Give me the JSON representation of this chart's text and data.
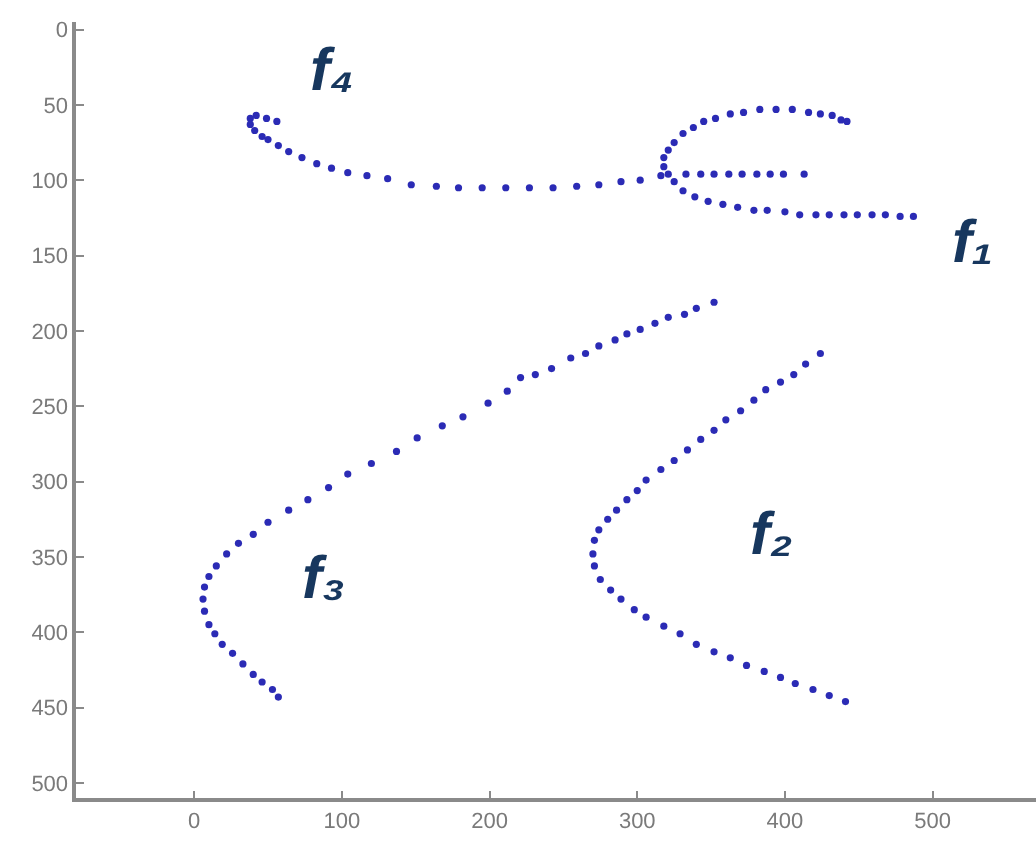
{
  "chart_data": {
    "type": "scatter",
    "xlim": [
      -80,
      570
    ],
    "ylim": [
      510,
      -5
    ],
    "xticks": [
      0,
      100,
      200,
      300,
      400,
      500
    ],
    "yticks": [
      0,
      50,
      100,
      150,
      200,
      250,
      300,
      350,
      400,
      450,
      500
    ],
    "marker": "circle",
    "series": [
      {
        "name": "f₄",
        "color": "#2b2bb5",
        "x": [
          56,
          49,
          42,
          38,
          38,
          41,
          46,
          50,
          57,
          64,
          73,
          83,
          93,
          104,
          117,
          131,
          147,
          164,
          179,
          195,
          211,
          227,
          243,
          259,
          274,
          289,
          302,
          316,
          333,
          343,
          352,
          362,
          371,
          381,
          390,
          399,
          413
        ],
        "values": [
          61,
          59,
          57,
          59,
          63,
          67,
          71,
          73,
          77,
          81,
          85,
          89,
          92,
          95,
          97,
          99,
          103,
          104,
          105,
          105,
          105,
          105,
          105,
          104,
          103,
          101,
          100,
          97,
          96,
          96,
          96,
          96,
          96,
          96,
          96,
          96,
          96
        ]
      },
      {
        "name": "f₁",
        "color": "#2b2bb5",
        "x": [
          487,
          478,
          468,
          459,
          449,
          440,
          430,
          421,
          410,
          400,
          388,
          379,
          368,
          358,
          348,
          339,
          331,
          325,
          321,
          318,
          318,
          321,
          325,
          331,
          338,
          345,
          353,
          363,
          372,
          383,
          394,
          405,
          416,
          424,
          432,
          438,
          442
        ],
        "values": [
          124,
          124,
          123,
          123,
          123,
          123,
          123,
          123,
          123,
          121,
          120,
          120,
          118,
          116,
          114,
          111,
          107,
          101,
          96,
          91,
          85,
          80,
          75,
          69,
          65,
          61,
          59,
          56,
          55,
          53,
          53,
          53,
          55,
          56,
          57,
          60,
          61
        ]
      },
      {
        "name": "f₃",
        "color": "#2b2bb5",
        "x": [
          352,
          340,
          332,
          321,
          312,
          302,
          293,
          285,
          274,
          265,
          255,
          242,
          231,
          221,
          212,
          199,
          182,
          168,
          151,
          137,
          120,
          104,
          91,
          77,
          64,
          50,
          40,
          30,
          22,
          15,
          10,
          7,
          6,
          7,
          10,
          14,
          19,
          26,
          33,
          40,
          46,
          53,
          57
        ],
        "values": [
          181,
          185,
          189,
          191,
          195,
          199,
          202,
          206,
          210,
          215,
          218,
          225,
          229,
          231,
          240,
          248,
          257,
          263,
          271,
          280,
          288,
          295,
          304,
          312,
          319,
          327,
          335,
          341,
          348,
          356,
          363,
          370,
          378,
          386,
          395,
          401,
          408,
          414,
          421,
          428,
          433,
          438,
          443
        ]
      },
      {
        "name": "f₂",
        "color": "#2b2bb5",
        "x": [
          424,
          414,
          406,
          397,
          387,
          379,
          370,
          360,
          352,
          343,
          334,
          325,
          316,
          306,
          300,
          293,
          286,
          280,
          274,
          271,
          270,
          271,
          275,
          282,
          289,
          298,
          306,
          318,
          329,
          340,
          352,
          363,
          374,
          386,
          397,
          407,
          419,
          430,
          441
        ],
        "values": [
          215,
          222,
          229,
          234,
          239,
          246,
          253,
          259,
          266,
          272,
          279,
          286,
          292,
          299,
          306,
          312,
          319,
          325,
          332,
          339,
          348,
          356,
          365,
          372,
          378,
          385,
          390,
          396,
          401,
          408,
          413,
          417,
          422,
          426,
          430,
          434,
          438,
          442,
          446
        ]
      }
    ]
  }
}
